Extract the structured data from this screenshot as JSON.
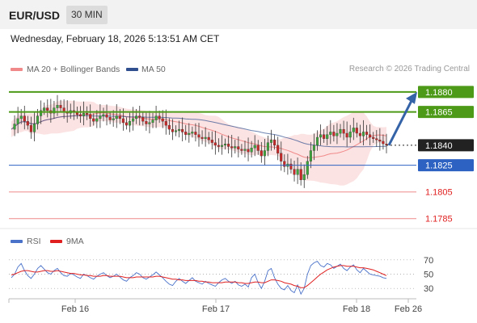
{
  "header": {
    "pair": "EUR/USD",
    "timeframe": "30 MIN",
    "timestamp": "Wednesday, February 18, 2026 5:13:51 AM CET"
  },
  "legend": {
    "bb_label": "MA 20 + Bollinger Bands",
    "ma50_label": "MA 50",
    "copyright": "Research © 2026 Trading Central",
    "bb_color": "#f08a8a",
    "ma50_color": "#2f4f8f"
  },
  "rsi_legend": {
    "rsi_label": "RSI",
    "ma_label": "9MA",
    "rsi_color": "#4a72c9",
    "ma_color": "#e02020"
  },
  "levels": [
    {
      "value": 1.188,
      "label": "1.1880",
      "style": "green"
    },
    {
      "value": 1.1865,
      "label": "1.1865",
      "style": "green"
    },
    {
      "value": 1.184,
      "label": "1.1840",
      "style": "dark"
    },
    {
      "value": 1.1825,
      "label": "1.1825",
      "style": "blue"
    },
    {
      "value": 1.1805,
      "label": "1.1805",
      "style": "red"
    },
    {
      "value": 1.1785,
      "label": "1.1785",
      "style": "red"
    }
  ],
  "chart_data": {
    "type": "candlestick",
    "price_range": [
      1.178,
      1.1892
    ],
    "x_labels": [
      "Feb 16",
      "Feb 17",
      "Feb 18",
      "Feb 26"
    ],
    "forecast": {
      "from": 1.184,
      "to": 1.188
    },
    "price_points": [
      1.1852,
      1.1856,
      1.186,
      1.1862,
      1.1858,
      1.1855,
      1.185,
      1.1856,
      1.1862,
      1.1866,
      1.1868,
      1.1866,
      1.1864,
      1.1868,
      1.187,
      1.1868,
      1.1865,
      1.1864,
      1.1866,
      1.1865,
      1.1863,
      1.1862,
      1.1864,
      1.1863,
      1.186,
      1.1858,
      1.186,
      1.1862,
      1.1863,
      1.1861,
      1.1859,
      1.186,
      1.1862,
      1.186,
      1.1857,
      1.1855,
      1.1858,
      1.186,
      1.1862,
      1.1861,
      1.1858,
      1.1856,
      1.1857,
      1.1859,
      1.1862,
      1.186,
      1.1858,
      1.1855,
      1.1852,
      1.185,
      1.1851,
      1.1852,
      1.185,
      1.1848,
      1.1849,
      1.185,
      1.1848,
      1.1846,
      1.1845,
      1.1846,
      1.1844,
      1.1842,
      1.184,
      1.1839,
      1.184,
      1.1841,
      1.1839,
      1.1838,
      1.1839,
      1.1837,
      1.1836,
      1.1837,
      1.1835,
      1.1838,
      1.184,
      1.1836,
      1.1832,
      1.1836,
      1.1842,
      1.1844,
      1.184,
      1.1834,
      1.1828,
      1.1824,
      1.1826,
      1.1822,
      1.1818,
      1.1822,
      1.1814,
      1.1818,
      1.1828,
      1.1836,
      1.184,
      1.1846,
      1.1848,
      1.1845,
      1.1848,
      1.185,
      1.1847,
      1.1849,
      1.1852,
      1.1849,
      1.1846,
      1.185,
      1.1853,
      1.1849,
      1.1847,
      1.185,
      1.1848,
      1.1846,
      1.1845,
      1.1844,
      1.1843,
      1.1841,
      1.184
    ],
    "rsi": {
      "ticks": [
        70,
        50,
        30
      ],
      "range": [
        20,
        80
      ],
      "values": [
        45,
        50,
        60,
        65,
        55,
        48,
        44,
        50,
        58,
        62,
        57,
        52,
        50,
        55,
        58,
        52,
        48,
        47,
        51,
        49,
        46,
        44,
        50,
        48,
        45,
        43,
        47,
        50,
        52,
        48,
        45,
        47,
        50,
        46,
        42,
        40,
        45,
        48,
        52,
        50,
        45,
        43,
        46,
        49,
        53,
        49,
        45,
        40,
        36,
        34,
        40,
        44,
        40,
        37,
        41,
        45,
        40,
        38,
        36,
        40,
        37,
        35,
        33,
        38,
        42,
        44,
        40,
        37,
        40,
        35,
        33,
        36,
        32,
        45,
        50,
        38,
        30,
        40,
        55,
        58,
        45,
        36,
        30,
        28,
        34,
        27,
        24,
        35,
        22,
        30,
        50,
        62,
        66,
        68,
        62,
        60,
        65,
        63,
        58,
        61,
        64,
        58,
        55,
        60,
        63,
        56,
        52,
        58,
        54,
        50,
        49,
        48,
        47,
        45,
        44
      ],
      "ma": [
        49,
        50,
        52,
        54,
        55,
        55,
        54,
        53,
        53,
        54,
        55,
        55,
        54,
        54,
        55,
        54,
        53,
        52,
        51,
        51,
        50,
        49,
        49,
        48,
        48,
        47,
        47,
        47,
        48,
        48,
        47,
        47,
        47,
        47,
        46,
        45,
        45,
        45,
        46,
        46,
        46,
        46,
        46,
        46,
        47,
        47,
        46,
        45,
        44,
        43,
        43,
        42,
        42,
        41,
        41,
        41,
        41,
        40,
        40,
        39,
        39,
        38,
        38,
        38,
        38,
        39,
        39,
        39,
        39,
        38,
        38,
        37,
        37,
        38,
        39,
        39,
        38,
        38,
        40,
        42,
        42,
        41,
        40,
        38,
        37,
        36,
        34,
        33,
        31,
        31,
        34,
        38,
        42,
        46,
        50,
        53,
        56,
        58,
        60,
        61,
        62,
        62,
        61,
        61,
        61,
        60,
        59,
        59,
        58,
        57,
        56,
        54,
        52,
        50,
        48
      ]
    }
  }
}
